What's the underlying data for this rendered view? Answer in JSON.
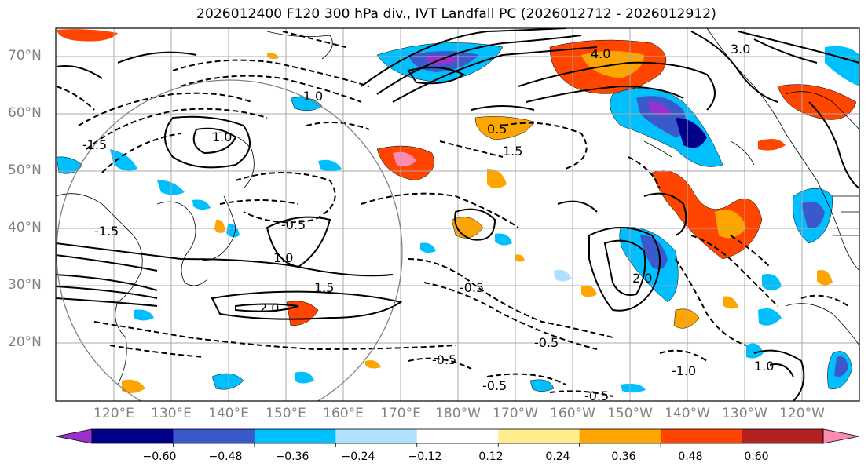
{
  "title": "2026012400 F120 300 hPa div., IVT Landfall PC (2026012712 - 2026012912)",
  "map": {
    "lat_labels": [
      "70°N",
      "60°N",
      "50°N",
      "40°N",
      "30°N",
      "20°N"
    ],
    "lon_labels": [
      "120°E",
      "130°E",
      "140°E",
      "150°E",
      "160°E",
      "170°E",
      "180°W",
      "170°W",
      "160°W",
      "150°W",
      "140°W",
      "130°W",
      "120°W"
    ],
    "contour_labels": [
      "-1.5",
      "-1.0",
      "-0.5",
      "0.5",
      "1.0",
      "1.5",
      "2.0",
      "3.0",
      "4.0",
      "-0.5",
      "-0.5",
      "-0.5",
      "-0.5",
      "-1.0",
      "1.0",
      "1.5",
      "2.0",
      "-1.5",
      "-0.5",
      "1.0"
    ]
  },
  "colorbar": {
    "labels": [
      "−0.60",
      "−0.48",
      "−0.36",
      "−0.24",
      "−0.12",
      "0.12",
      "0.24",
      "0.36",
      "0.48",
      "0.60"
    ],
    "colors": [
      "#9932cc",
      "#00008b",
      "#3a5acc",
      "#00bfff",
      "#b0e2ff",
      "#ffffff",
      "#ffec8b",
      "#ffa500",
      "#ff4500",
      "#b22222",
      "#ff8cb0"
    ]
  }
}
